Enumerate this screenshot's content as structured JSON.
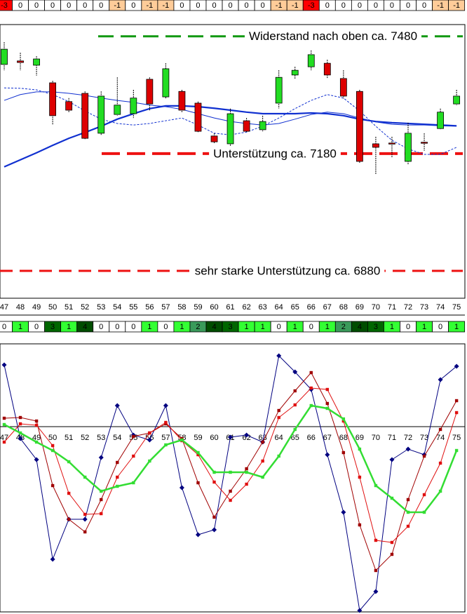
{
  "chart_data": [
    {
      "type": "candlestick",
      "categories": [
        "47",
        "48",
        "49",
        "50",
        "51",
        "52",
        "53",
        "54",
        "55",
        "56",
        "57",
        "58",
        "59",
        "60",
        "61",
        "62",
        "63",
        "64",
        "65",
        "66",
        "67",
        "68",
        "69",
        "70",
        "71",
        "72",
        "73",
        "74",
        "75"
      ],
      "open": [
        7408,
        7417,
        7406,
        7361,
        7313,
        7334,
        7232,
        7280,
        7282,
        7370,
        7325,
        7339,
        7309,
        7225,
        7205,
        7264,
        7241,
        7309,
        7381,
        7402,
        7411,
        7372,
        7339,
        7205,
        7207,
        7160,
        7209,
        7244,
        7307
      ],
      "high": [
        7465,
        7438,
        7429,
        7366,
        7322,
        7339,
        7339,
        7375,
        7343,
        7375,
        7411,
        7343,
        7313,
        7232,
        7295,
        7271,
        7277,
        7393,
        7402,
        7444,
        7420,
        7393,
        7343,
        7223,
        7223,
        7259,
        7232,
        7295,
        7343
      ],
      "low": [
        7393,
        7393,
        7379,
        7253,
        7286,
        7217,
        7226,
        7277,
        7271,
        7289,
        7321,
        7286,
        7235,
        7205,
        7199,
        7235,
        7237,
        7295,
        7370,
        7393,
        7372,
        7321,
        7156,
        7128,
        7169,
        7151,
        7187,
        7241,
        7304
      ],
      "close": [
        7447,
        7413,
        7422,
        7277,
        7291,
        7219,
        7327,
        7304,
        7322,
        7307,
        7397,
        7291,
        7237,
        7210,
        7282,
        7237,
        7262,
        7375,
        7393,
        7433,
        7381,
        7327,
        7160,
        7196,
        7206,
        7232,
        7208,
        7286,
        7327
      ],
      "up_color": "#22dd22",
      "down_color": "#dd0000",
      "lines": [
        {
          "color": "#1030d0",
          "width": 2.2,
          "dash": false,
          "values": [
            7146,
            7164,
            7182,
            7201,
            7219,
            7234,
            7250,
            7268,
            7282,
            7295,
            7302,
            7302,
            7300,
            7296,
            7291,
            7286,
            7282,
            7282,
            7282,
            7284,
            7282,
            7277,
            7268,
            7262,
            7259,
            7257,
            7255,
            7253,
            7251
          ]
        },
        {
          "color": "#1030d0",
          "width": 1,
          "dash": false,
          "values": [
            7316,
            7331,
            7338,
            7338,
            7334,
            7329,
            7322,
            7316,
            7311,
            7304,
            7300,
            7293,
            7282,
            7271,
            7262,
            7257,
            7253,
            7257,
            7268,
            7280,
            7286,
            7282,
            7271,
            7261,
            7255,
            7253,
            7253,
            7251,
            7250
          ]
        },
        {
          "color": "#1030d0",
          "width": 1,
          "dash": true,
          "values": [
            7348,
            7347,
            7343,
            7331,
            7313,
            7289,
            7268,
            7257,
            7253,
            7257,
            7264,
            7271,
            7253,
            7232,
            7228,
            7235,
            7250,
            7271,
            7295,
            7316,
            7331,
            7322,
            7289,
            7250,
            7214,
            7192,
            7178,
            7178,
            7196
          ]
        }
      ],
      "reference_lines": [
        {
          "label": "Widerstand nach oben ca. 7480",
          "value": 7480,
          "color": "#119911"
        },
        {
          "label": "Unterstützung ca. 7180",
          "value": 7180,
          "color": "#ee1111"
        },
        {
          "label": "sehr starke Unterstützung ca. 6880",
          "value": 6880,
          "color": "#ee1111"
        }
      ],
      "ylim": [
        6810,
        7510
      ]
    },
    {
      "type": "line",
      "categories": [
        "47",
        "48",
        "49",
        "50",
        "51",
        "52",
        "53",
        "54",
        "55",
        "56",
        "57",
        "58",
        "59",
        "60",
        "61",
        "62",
        "63",
        "64",
        "65",
        "66",
        "67",
        "68",
        "69",
        "70",
        "71",
        "72",
        "73",
        "74",
        "75"
      ],
      "series": [
        {
          "color": "#000080",
          "marker": "diamond",
          "values": [
            88,
            -17,
            -47,
            -189,
            -132,
            -132,
            -44,
            30,
            -12,
            -19,
            30,
            -87,
            -154,
            -147,
            -15,
            -12,
            -22,
            101,
            78,
            53,
            -40,
            -122,
            -262,
            -235,
            -47,
            -32,
            -40,
            67,
            86
          ]
        },
        {
          "color": "#a00000",
          "marker": "square",
          "values": [
            12,
            13,
            8,
            -84,
            -132,
            -150,
            -104,
            -51,
            -14,
            -9,
            4,
            -17,
            -80,
            -129,
            -92,
            -60,
            -22,
            23,
            51,
            77,
            33,
            -37,
            -140,
            -205,
            -182,
            -104,
            -42,
            -4,
            37
          ]
        },
        {
          "color": "#e01010",
          "marker": "square",
          "values": [
            -22,
            4,
            2,
            -27,
            -95,
            -125,
            -124,
            -72,
            -42,
            -9,
            6,
            -20,
            -40,
            -79,
            -105,
            -82,
            -49,
            13,
            31,
            55,
            53,
            8,
            -72,
            -162,
            -165,
            -142,
            -97,
            -52,
            20
          ]
        },
        {
          "color": "#33dd33",
          "marker": "square",
          "values": [
            3,
            -9,
            -22,
            -34,
            -50,
            -72,
            -92,
            -85,
            -80,
            -49,
            -26,
            -19,
            -37,
            -65,
            -65,
            -65,
            -72,
            -42,
            -4,
            30,
            26,
            11,
            -32,
            -84,
            -102,
            -122,
            -122,
            -92,
            -34
          ]
        }
      ],
      "zero_line": 0,
      "ylim": [
        -262,
        118
      ]
    }
  ],
  "signal_rows": {
    "top": [
      "-3",
      "0",
      "0",
      "0",
      "0",
      "0",
      "0",
      "-1",
      "0",
      "-1",
      "-1",
      "0",
      "0",
      "0",
      "0",
      "0",
      "0",
      "-1",
      "-1",
      "-3",
      "0",
      "0",
      "0",
      "0",
      "0",
      "0",
      "0",
      "-1",
      "-1"
    ],
    "middle": [
      "0",
      "1",
      "0",
      "3",
      "1",
      "4",
      "0",
      "0",
      "0",
      "1",
      "0",
      "1",
      "2",
      "4",
      "3",
      "1",
      "1",
      "0",
      "1",
      "0",
      "1",
      "2",
      "4",
      "3",
      "1",
      "0",
      "1",
      "0",
      "1"
    ]
  }
}
